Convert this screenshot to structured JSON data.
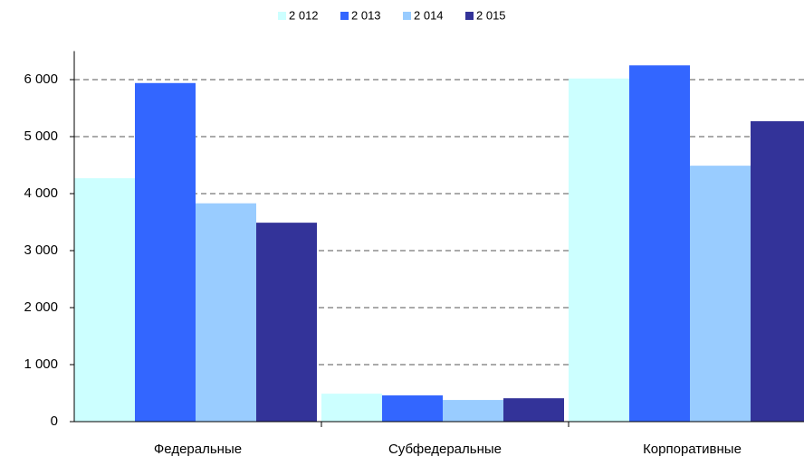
{
  "chart_data": {
    "type": "bar",
    "categories": [
      "Федеральные",
      "Субфедеральные",
      "Корпоративные"
    ],
    "series": [
      {
        "name": "2 012",
        "color": "#ccffff",
        "values": [
          4270,
          490,
          6020
        ]
      },
      {
        "name": "2 013",
        "color": "#3366ff",
        "values": [
          5940,
          460,
          6250
        ]
      },
      {
        "name": "2 014",
        "color": "#99ccff",
        "values": [
          3830,
          380,
          4490
        ]
      },
      {
        "name": "2 015",
        "color": "#333399",
        "values": [
          3490,
          410,
          5270
        ]
      }
    ],
    "ylim": [
      0,
      6500
    ],
    "yticks": [
      0,
      {
        "value": 1000,
        "label": "1 000"
      },
      {
        "value": 2000,
        "label": "2 000"
      },
      {
        "value": 3000,
        "label": "3 000"
      },
      {
        "value": 4000,
        "label": "4 000"
      },
      {
        "value": 5000,
        "label": "5 000"
      },
      {
        "value": 6000,
        "label": "6 000"
      }
    ],
    "grid": true,
    "legend": "top"
  }
}
